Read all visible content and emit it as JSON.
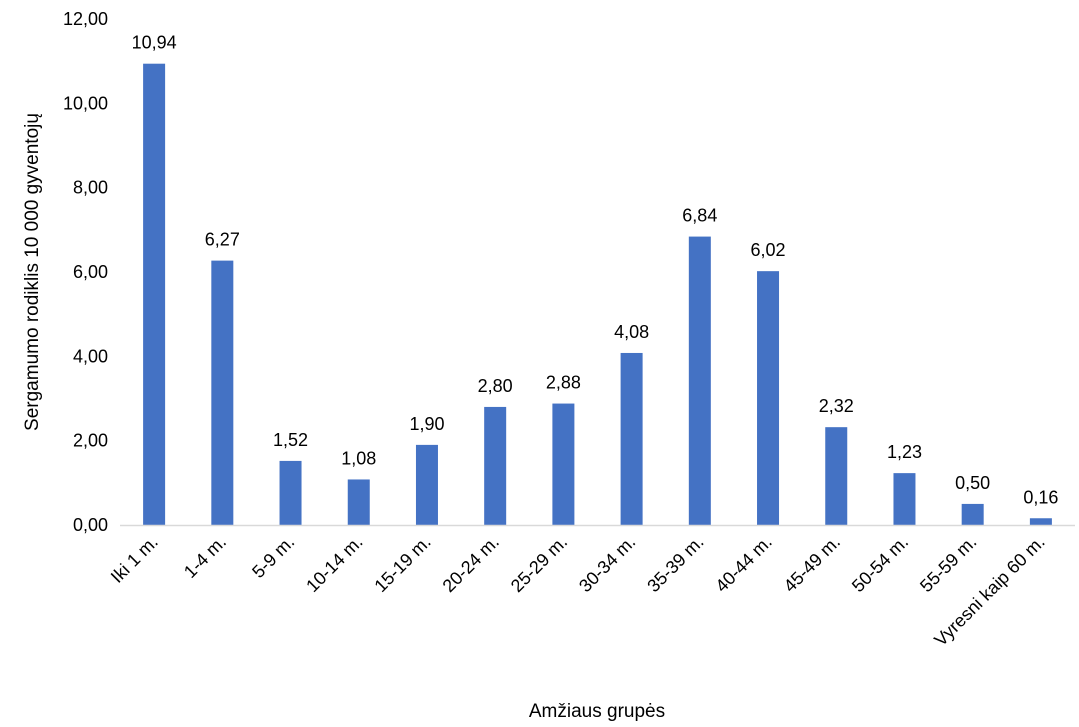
{
  "chart_data": {
    "type": "bar",
    "title": "",
    "xlabel": "Amžiaus grupės",
    "ylabel": "Sergamumo rodiklis 10 000 gyventojų",
    "categories": [
      "Iki 1 m.",
      "1-4 m.",
      "5-9 m.",
      "10-14 m.",
      "15-19 m.",
      "20-24 m.",
      "25-29 m.",
      "30-34 m.",
      "35-39 m.",
      "40-44 m.",
      "45-49 m.",
      "50-54 m.",
      "55-59 m.",
      "Vyresni kaip 60 m."
    ],
    "values": [
      10.94,
      6.27,
      1.52,
      1.08,
      1.9,
      2.8,
      2.88,
      4.08,
      6.84,
      6.02,
      2.32,
      1.23,
      0.5,
      0.16
    ],
    "data_labels": [
      "10,94",
      "6,27",
      "1,52",
      "1,08",
      "1,90",
      "2,80",
      "2,88",
      "4,08",
      "6,84",
      "6,02",
      "2,32",
      "1,23",
      "0,50",
      "0,16"
    ],
    "y_ticks": [
      0,
      2,
      4,
      6,
      8,
      10,
      12
    ],
    "y_tick_labels": [
      "0,00",
      "2,00",
      "4,00",
      "6,00",
      "8,00",
      "10,00",
      "12,00"
    ],
    "ylim": [
      0,
      12
    ],
    "grid": false,
    "legend": "none",
    "bar_color": "#4472C4",
    "axis_color": "#D9D9D9"
  }
}
